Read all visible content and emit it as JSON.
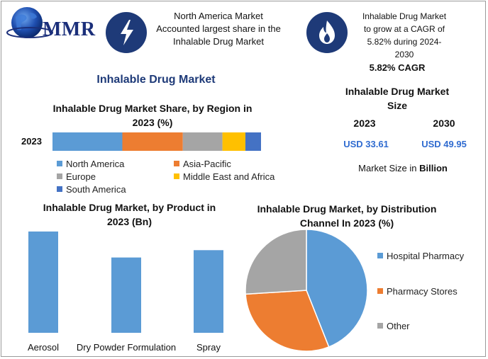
{
  "logo": {
    "text": "MMR"
  },
  "banners": [
    {
      "text": "North America Market Accounted largest share in the Inhalable Drug Market",
      "icon": "lightning-bolt-icon"
    },
    {
      "text": "Inhalable Drug Market to grow at a CAGR of 5.82% during 2024-2030",
      "icon": "flame-icon"
    }
  ],
  "main_title": "Inhalable Drug Market",
  "stats": {
    "cagr": "5.82% CAGR",
    "size_title": "Inhalable Drug Market Size",
    "year_start": "2023",
    "year_end": "2030",
    "value_start": "USD 33.61",
    "value_end": "USD 49.95",
    "unit_prefix": "Market Size in ",
    "unit_bold": "Billion"
  },
  "colors": {
    "dark_blue": "#1e3a78",
    "bar_blue": "#5b9bd5",
    "orange": "#ed7d31",
    "gray": "#a5a5a5",
    "yellow": "#ffc000",
    "south_america": "#4472c4"
  },
  "chart_data": [
    {
      "type": "bar",
      "orientation": "horizontal-stacked",
      "title": "Inhalable Drug Market Share, by Region in 2023 (%)",
      "categories": [
        "2023"
      ],
      "series": [
        {
          "name": "North America",
          "values": [
            33.5
          ],
          "color": "#5b9bd5"
        },
        {
          "name": "Asia-Pacific",
          "values": [
            29
          ],
          "color": "#ed7d31"
        },
        {
          "name": "Europe",
          "values": [
            19
          ],
          "color": "#a5a5a5"
        },
        {
          "name": "Middle East and Africa",
          "values": [
            11
          ],
          "color": "#ffc000"
        },
        {
          "name": "South America",
          "values": [
            7.5
          ],
          "color": "#4472c4"
        }
      ],
      "xlim": [
        0,
        100
      ],
      "legend": "bottom"
    },
    {
      "type": "bar",
      "title": "Inhalable Drug Market, by Product in 2023 (Bn)",
      "categories": [
        "Aerosol",
        "Dry Powder Formulation",
        "Spray"
      ],
      "values": [
        15.2,
        11.3,
        12.4
      ],
      "ylim": [
        0,
        17
      ],
      "color": "#5b9bd5"
    },
    {
      "type": "pie",
      "title": "Inhalable Drug Market, by Distribution Channel In 2023 (%)",
      "categories": [
        "Hospital Pharmacy",
        "Pharmacy Stores",
        "Other"
      ],
      "values": [
        44,
        30,
        26
      ],
      "colors": [
        "#5b9bd5",
        "#ed7d31",
        "#a5a5a5"
      ],
      "legend": "right"
    }
  ]
}
